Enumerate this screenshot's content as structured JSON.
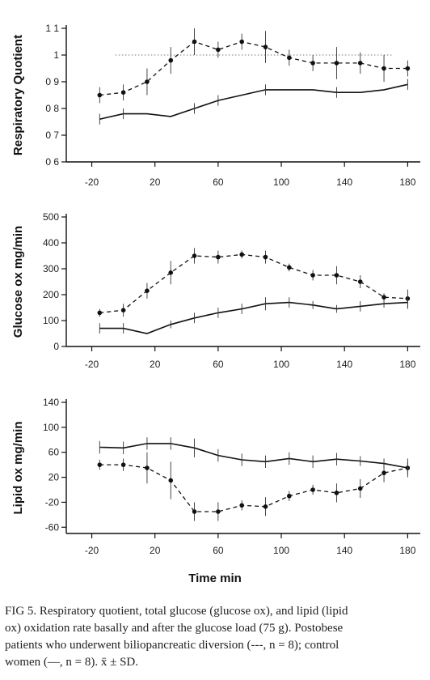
{
  "chart_data": [
    {
      "type": "line",
      "ylabel": "Respiratory Quotient",
      "ylim": [
        0.6,
        1.1
      ],
      "yticks": [
        0.6,
        0.7,
        0.8,
        0.9,
        1.0,
        1.1
      ],
      "ytick_labels": [
        "0 6",
        "0 7",
        "0 8",
        "0 9",
        "1",
        "1 1"
      ],
      "xlim": [
        -30,
        188
      ],
      "xticks": [
        -20,
        20,
        60,
        100,
        140,
        180
      ],
      "xtick_labels": [
        "-20",
        "20",
        "60",
        "100",
        "140",
        "180"
      ],
      "reference_line": 1.0,
      "series": [
        {
          "style": "dashed",
          "x": [
            -15,
            0,
            15,
            30,
            45,
            60,
            75,
            90,
            105,
            120,
            135,
            150,
            165,
            180
          ],
          "y": [
            0.85,
            0.86,
            0.9,
            0.98,
            1.05,
            1.02,
            1.05,
            1.03,
            0.99,
            0.97,
            0.97,
            0.97,
            0.95,
            0.95
          ],
          "err": [
            0.03,
            0.03,
            0.05,
            0.05,
            0.05,
            0.03,
            0.03,
            0.06,
            0.03,
            0.03,
            0.06,
            0.04,
            0.05,
            0.03
          ]
        },
        {
          "style": "solid",
          "x": [
            -15,
            0,
            15,
            30,
            45,
            60,
            75,
            90,
            105,
            120,
            135,
            150,
            165,
            180
          ],
          "y": [
            0.76,
            0.78,
            0.78,
            0.77,
            0.8,
            0.83,
            0.85,
            0.87,
            0.87,
            0.87,
            0.86,
            0.86,
            0.87,
            0.89
          ],
          "err": [
            0.02,
            0.02,
            0,
            0,
            0.02,
            0.02,
            0,
            0.02,
            0,
            0,
            0.02,
            0,
            0,
            0.02
          ]
        }
      ]
    },
    {
      "type": "line",
      "ylabel": "Glucose ox mg/min",
      "ylim": [
        0,
        500
      ],
      "yticks": [
        0,
        100,
        200,
        300,
        400,
        500
      ],
      "ytick_labels": [
        "0",
        "100",
        "200",
        "300",
        "400",
        "500"
      ],
      "xlim": [
        -30,
        188
      ],
      "xticks": [
        -20,
        20,
        60,
        100,
        140,
        180
      ],
      "xtick_labels": [
        "-20",
        "20",
        "60",
        "100",
        "140",
        "180"
      ],
      "series": [
        {
          "style": "dashed",
          "x": [
            -15,
            0,
            15,
            30,
            45,
            60,
            75,
            90,
            105,
            120,
            135,
            150,
            165,
            180
          ],
          "y": [
            130,
            140,
            215,
            285,
            350,
            345,
            355,
            345,
            305,
            275,
            275,
            250,
            190,
            185
          ],
          "err": [
            15,
            25,
            30,
            45,
            30,
            25,
            15,
            25,
            15,
            20,
            35,
            25,
            15,
            35
          ]
        },
        {
          "style": "solid",
          "x": [
            -15,
            0,
            15,
            30,
            45,
            60,
            75,
            90,
            105,
            120,
            135,
            150,
            165,
            180
          ],
          "y": [
            70,
            70,
            50,
            85,
            110,
            130,
            145,
            165,
            170,
            160,
            145,
            155,
            165,
            170
          ],
          "err": [
            20,
            20,
            0,
            15,
            20,
            20,
            20,
            25,
            20,
            15,
            15,
            20,
            15,
            25
          ]
        }
      ]
    },
    {
      "type": "line",
      "ylabel": "Lipid ox mg/min",
      "ylim": [
        -70,
        140
      ],
      "yticks": [
        -60,
        -20,
        20,
        60,
        100,
        140
      ],
      "ytick_labels": [
        "-60",
        "-20",
        "20",
        "60",
        "100",
        "140"
      ],
      "xlim": [
        -30,
        188
      ],
      "xticks": [
        -20,
        20,
        60,
        100,
        140,
        180
      ],
      "xtick_labels": [
        "-20",
        "20",
        "60",
        "100",
        "140",
        "180"
      ],
      "series": [
        {
          "style": "dashed",
          "x": [
            -15,
            0,
            15,
            30,
            45,
            60,
            75,
            90,
            105,
            120,
            135,
            150,
            165,
            180
          ],
          "y": [
            40,
            40,
            35,
            15,
            -35,
            -35,
            -25,
            -27,
            -10,
            0,
            -5,
            2,
            27,
            35
          ],
          "err": [
            8,
            10,
            25,
            30,
            15,
            15,
            8,
            15,
            8,
            8,
            15,
            15,
            15,
            15
          ]
        },
        {
          "style": "solid",
          "x": [
            -15,
            0,
            15,
            30,
            45,
            60,
            75,
            90,
            105,
            120,
            135,
            150,
            165,
            180
          ],
          "y": [
            68,
            67,
            74,
            74,
            67,
            55,
            48,
            45,
            50,
            45,
            49,
            46,
            42,
            35
          ],
          "err": [
            10,
            10,
            10,
            10,
            15,
            10,
            10,
            10,
            10,
            10,
            10,
            8,
            8,
            10
          ]
        }
      ]
    }
  ],
  "xaxis_title": "Time min",
  "caption": {
    "line1": "FIG 5. Respiratory quotient, total glucose (glucose ox), and lipid (lipid",
    "line2": "ox) oxidation rate basally and after the glucose load (75 g). Postobese",
    "line3": "patients who underwent biliopancreatic diversion (---, n = 8); control",
    "line4": "women (—, n = 8). x̄ ± SD."
  }
}
